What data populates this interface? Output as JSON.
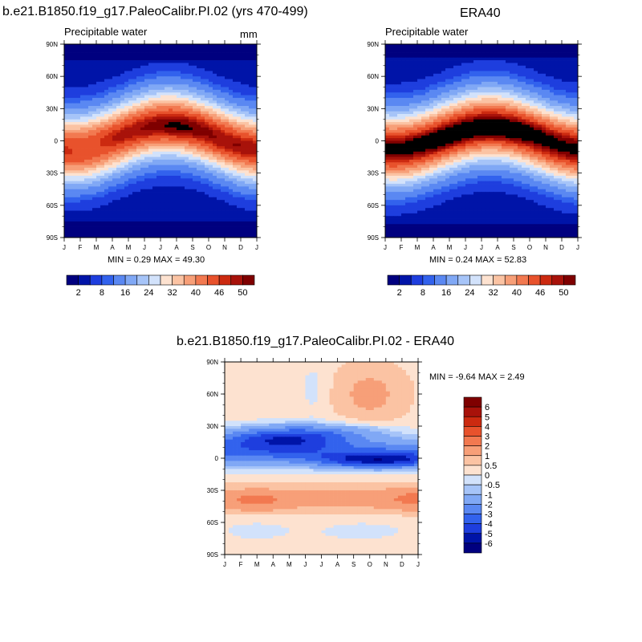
{
  "chart_data": [
    {
      "type": "heatmap",
      "title": "b.e21.B1850.f19_g17.PaleoCalibr.PI.02 (yrs 470-499)",
      "subtitle": "Precipitable water",
      "units": "mm",
      "x_ticks": [
        "J",
        "F",
        "M",
        "A",
        "M",
        "J",
        "J",
        "A",
        "S",
        "O",
        "N",
        "D",
        "J"
      ],
      "y_ticks": [
        "90N",
        "60N",
        "30N",
        "0",
        "30S",
        "60S",
        "90S"
      ],
      "stats": "MIN =   0.29 MAX =  49.30",
      "min": 0.29,
      "max": 49.3,
      "colorbar_labels": [
        "2",
        "8",
        "16",
        "24",
        "32",
        "40",
        "46",
        "50"
      ],
      "colorbar_levels": [
        2,
        4,
        6,
        8,
        12,
        16,
        20,
        24,
        28,
        32,
        36,
        40,
        44,
        46,
        48,
        50
      ]
    },
    {
      "type": "heatmap",
      "title": "ERA40",
      "subtitle": "Precipitable water",
      "x_ticks": [
        "J",
        "F",
        "M",
        "A",
        "M",
        "J",
        "J",
        "A",
        "S",
        "O",
        "N",
        "D",
        "J"
      ],
      "y_ticks": [
        "90N",
        "60N",
        "30N",
        "0",
        "30S",
        "60S",
        "90S"
      ],
      "stats": "MIN =   0.24 MAX =  52.83",
      "min": 0.24,
      "max": 52.83,
      "colorbar_labels": [
        "2",
        "8",
        "16",
        "24",
        "32",
        "40",
        "46",
        "50"
      ],
      "colorbar_levels": [
        2,
        4,
        6,
        8,
        12,
        16,
        20,
        24,
        28,
        32,
        36,
        40,
        44,
        46,
        48,
        50
      ]
    },
    {
      "type": "heatmap",
      "title": "b.e21.B1850.f19_g17.PaleoCalibr.PI.02 - ERA40",
      "x_ticks": [
        "J",
        "F",
        "M",
        "A",
        "M",
        "J",
        "J",
        "A",
        "S",
        "O",
        "N",
        "D",
        "J"
      ],
      "y_ticks": [
        "90N",
        "60N",
        "30N",
        "0",
        "30S",
        "60S",
        "90S"
      ],
      "stats": "MIN =  -9.64 MAX =   2.49",
      "min": -9.64,
      "max": 2.49,
      "colorbar_labels": [
        "6",
        "5",
        "4",
        "3",
        "2",
        "1",
        "0.5",
        "0",
        "-0.5",
        "-1",
        "-2",
        "-3",
        "-4",
        "-5",
        "-6"
      ],
      "colorbar_levels": [
        -6,
        -5,
        -4,
        -3,
        -2,
        -1,
        -0.5,
        0,
        0.5,
        1,
        2,
        3,
        4,
        5,
        6
      ]
    }
  ],
  "colors": {
    "abs_palette": [
      "#00007f",
      "#0014a8",
      "#1e3ede",
      "#3262ed",
      "#5a88f2",
      "#80a8f5",
      "#a6c4f8",
      "#d2e2fb",
      "#fde2d0",
      "#fbc3a3",
      "#f79f78",
      "#f27950",
      "#e8522c",
      "#cc2a10",
      "#a8120a",
      "#7f0000"
    ],
    "diff_palette": [
      "#00007f",
      "#0014a8",
      "#1e3ede",
      "#3262ed",
      "#5a88f2",
      "#80a8f5",
      "#a6c4f8",
      "#d2e2fb",
      "#fde2d0",
      "#fbc3a3",
      "#f79f78",
      "#f27950",
      "#e8522c",
      "#cc2a10",
      "#a8120a",
      "#7f0000"
    ]
  }
}
